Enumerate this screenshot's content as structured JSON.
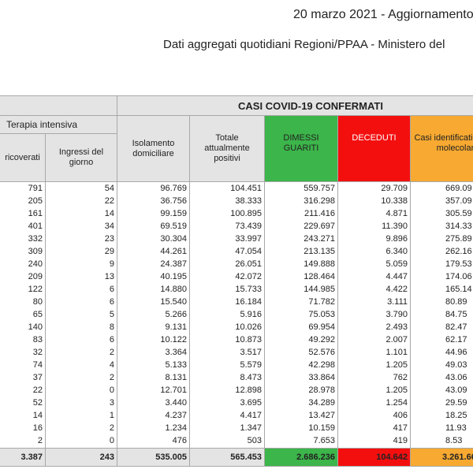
{
  "header": {
    "date": "20 marzo 2021 - Aggiornamento",
    "subtitle": "Dati aggregati quotidiani Regioni/PPAA - Ministero del"
  },
  "table": {
    "group_title": "CASI COVID-19 CONFERMATI",
    "subgroup": "Terapia intensiva",
    "columns": [
      "ricoverati",
      "Ingressi del giorno",
      "Isolamento domiciliare",
      "Totale attualmente positivi",
      "DIMESSI GUARITI",
      "DECEDUTI",
      "Casi identificati da test molecolare"
    ],
    "rows": [
      [
        "791",
        "54",
        "96.769",
        "104.451",
        "559.757",
        "29.709",
        "669.09"
      ],
      [
        "205",
        "22",
        "36.756",
        "38.333",
        "316.298",
        "10.338",
        "357.09"
      ],
      [
        "161",
        "14",
        "99.159",
        "100.895",
        "211.416",
        "4.871",
        "305.59"
      ],
      [
        "401",
        "34",
        "69.519",
        "73.439",
        "229.697",
        "11.390",
        "314.33"
      ],
      [
        "332",
        "23",
        "30.304",
        "33.997",
        "243.271",
        "9.896",
        "275.89"
      ],
      [
        "309",
        "29",
        "44.261",
        "47.054",
        "213.135",
        "6.340",
        "262.16"
      ],
      [
        "240",
        "9",
        "24.387",
        "26.051",
        "149.888",
        "5.059",
        "179.53"
      ],
      [
        "209",
        "13",
        "40.195",
        "42.072",
        "128.464",
        "4.447",
        "174.06"
      ],
      [
        "122",
        "6",
        "14.880",
        "15.733",
        "144.985",
        "4.422",
        "165.14"
      ],
      [
        "80",
        "6",
        "15.540",
        "16.184",
        "71.782",
        "3.111",
        "80.89"
      ],
      [
        "65",
        "5",
        "5.266",
        "5.916",
        "75.053",
        "3.790",
        "84.75"
      ],
      [
        "140",
        "8",
        "9.131",
        "10.026",
        "69.954",
        "2.493",
        "82.47"
      ],
      [
        "83",
        "6",
        "10.122",
        "10.873",
        "49.292",
        "2.007",
        "62.17"
      ],
      [
        "32",
        "2",
        "3.364",
        "3.517",
        "52.576",
        "1.101",
        "44.96"
      ],
      [
        "74",
        "4",
        "5.133",
        "5.579",
        "42.298",
        "1.205",
        "49.03"
      ],
      [
        "37",
        "2",
        "8.131",
        "8.473",
        "33.864",
        "762",
        "43.06"
      ],
      [
        "22",
        "0",
        "12.701",
        "12.898",
        "28.978",
        "1.205",
        "43.09"
      ],
      [
        "52",
        "3",
        "3.440",
        "3.695",
        "34.289",
        "1.254",
        "29.59"
      ],
      [
        "14",
        "1",
        "4.237",
        "4.417",
        "13.427",
        "406",
        "18.25"
      ],
      [
        "16",
        "2",
        "1.234",
        "1.347",
        "10.159",
        "417",
        "11.93"
      ],
      [
        "2",
        "0",
        "476",
        "503",
        "7.653",
        "419",
        "8.53"
      ]
    ],
    "totals": [
      "3.387",
      "243",
      "535.005",
      "565.453",
      "2.686.236",
      "104.642",
      "3.261.66"
    ]
  }
}
